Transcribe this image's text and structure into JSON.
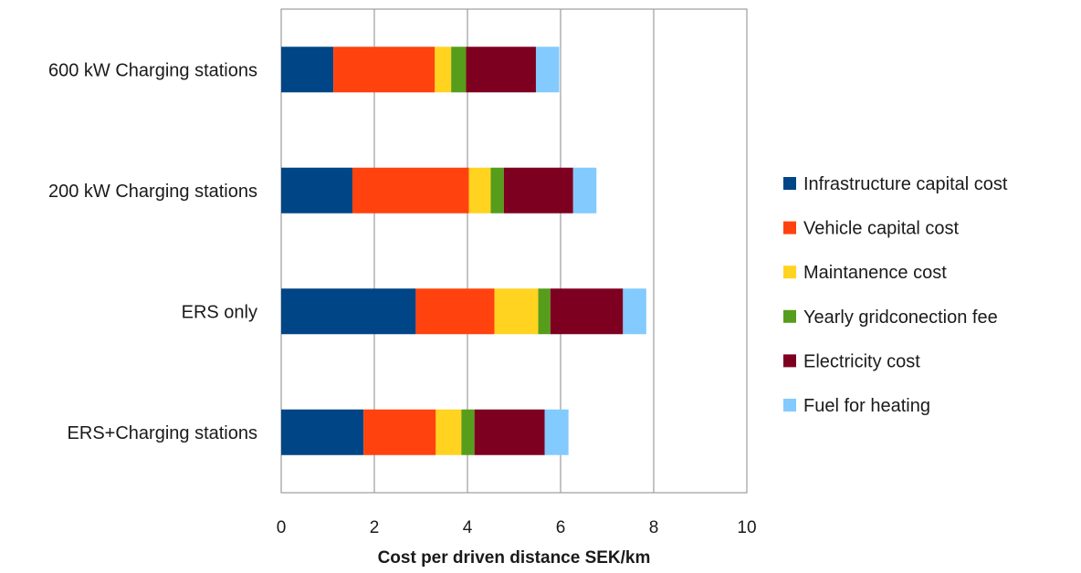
{
  "chart_data": {
    "type": "bar",
    "orientation": "horizontal",
    "stacked": true,
    "title": "",
    "xlabel": "Cost per driven distance  SEK/km",
    "ylabel": "",
    "xlim": [
      0,
      10
    ],
    "xticks": [
      0,
      2,
      4,
      6,
      8,
      10
    ],
    "grid": true,
    "legend_position": "right",
    "categories": [
      "600 kW Charging stations",
      "200 kW Charging stations",
      "ERS only",
      "ERS+Charging stations"
    ],
    "series": [
      {
        "name": "Infrastructure capital cost",
        "color": "#004586",
        "values": [
          1.12,
          1.53,
          2.89,
          1.77
        ]
      },
      {
        "name": "Vehicle capital cost",
        "color": "#ff420e",
        "values": [
          2.18,
          2.5,
          1.69,
          1.55
        ]
      },
      {
        "name": "Maintanence cost",
        "color": "#ffd320",
        "values": [
          0.35,
          0.47,
          0.94,
          0.55
        ]
      },
      {
        "name": "Yearly gridconection fee",
        "color": "#579d1c",
        "values": [
          0.32,
          0.28,
          0.26,
          0.28
        ]
      },
      {
        "name": "Electricity cost",
        "color": "#7e0021",
        "values": [
          1.5,
          1.49,
          1.56,
          1.51
        ]
      },
      {
        "name": "Fuel for heating",
        "color": "#83caff",
        "values": [
          0.5,
          0.5,
          0.5,
          0.51
        ]
      }
    ]
  }
}
